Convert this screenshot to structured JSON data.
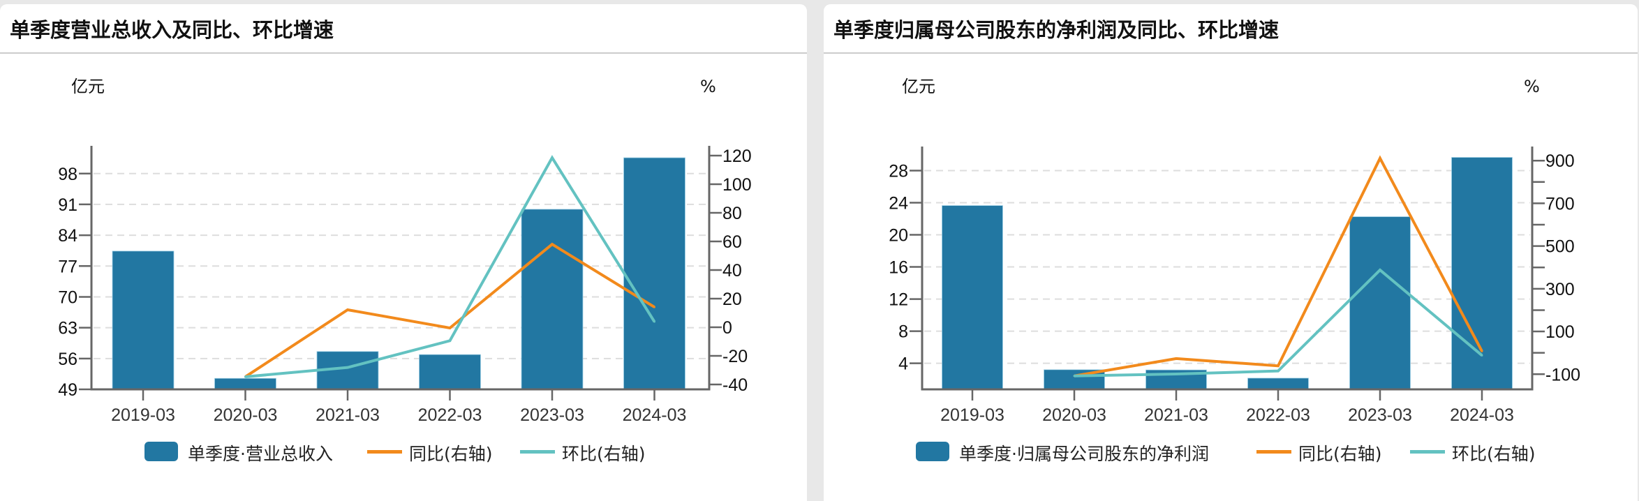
{
  "colors": {
    "bar": "#2277a2",
    "yoy": "#f28a1c",
    "qoq": "#63c2c1",
    "axis": "#666666",
    "grid": "#dddddd"
  },
  "chart_data": [
    {
      "type": "bar",
      "title": "单季度营业总收入及同比、环比增速",
      "categories": [
        "2019-03",
        "2020-03",
        "2021-03",
        "2022-03",
        "2023-03",
        "2024-03"
      ],
      "left_axis": {
        "unit": "亿元",
        "ticks": [
          "49",
          "56",
          "63",
          "70",
          "77",
          "84",
          "91",
          "98"
        ],
        "tick_values": [
          49,
          56,
          63,
          70,
          77,
          84,
          91,
          98
        ],
        "range": [
          49,
          104.3
        ]
      },
      "right_axis": {
        "unit": "%",
        "ticks": [
          "-40",
          "-20",
          "0",
          "20",
          "40",
          "60",
          "80",
          "100",
          "120"
        ],
        "tick_values": [
          -40,
          -20,
          0,
          20,
          40,
          60,
          80,
          100,
          120
        ],
        "labeled_values": [
          -40,
          -20,
          0,
          20,
          40,
          60,
          80,
          100,
          120
        ],
        "range": [
          -43.4,
          126.8
        ]
      },
      "series": [
        {
          "name": "单季度·营业总收入",
          "type": "bar",
          "axis": "left",
          "values": [
            80.4,
            51.5,
            57.6,
            56.9,
            89.9,
            101.6
          ]
        },
        {
          "name": "同比(右轴)",
          "type": "line",
          "axis": "right",
          "values": [
            null,
            -34.6,
            12.2,
            -0.5,
            58.0,
            14.1
          ]
        },
        {
          "name": "环比(右轴)",
          "type": "line",
          "axis": "right",
          "values": [
            null,
            -34.6,
            -28.1,
            -9.4,
            118.5,
            3.9
          ]
        }
      ],
      "legend_position": "bottom",
      "grid": true
    },
    {
      "type": "bar",
      "title": "单季度归属母公司股东的净利润及同比、环比增速",
      "categories": [
        "2019-03",
        "2020-03",
        "2021-03",
        "2022-03",
        "2023-03",
        "2024-03"
      ],
      "left_axis": {
        "unit": "亿元",
        "ticks": [
          "4",
          "8",
          "12",
          "16",
          "20",
          "24",
          "28"
        ],
        "tick_values": [
          4,
          8,
          12,
          16,
          20,
          24,
          28
        ],
        "range": [
          0.75,
          31.0
        ]
      },
      "right_axis": {
        "unit": "%",
        "ticks": [
          "-100",
          "100",
          "300",
          "500",
          "700",
          "900"
        ],
        "tick_values": [
          -100,
          0,
          100,
          200,
          300,
          400,
          500,
          600,
          700,
          800,
          900
        ],
        "labeled_values": [
          -100,
          100,
          300,
          500,
          700,
          900
        ],
        "range": [
          -171,
          966
        ]
      },
      "series": [
        {
          "name": "单季度·归属母公司股东的净利润",
          "type": "bar",
          "axis": "left",
          "values": [
            23.65,
            3.2,
            3.17,
            2.15,
            22.26,
            29.65
          ]
        },
        {
          "name": "同比(右轴)",
          "type": "line",
          "axis": "right",
          "values": [
            null,
            -108,
            -27,
            -61,
            911,
            7.5
          ]
        },
        {
          "name": "环比(右轴)",
          "type": "line",
          "axis": "right",
          "values": [
            null,
            -108,
            -99,
            -85,
            388,
            -12
          ]
        }
      ],
      "legend_position": "bottom",
      "grid": true
    }
  ]
}
